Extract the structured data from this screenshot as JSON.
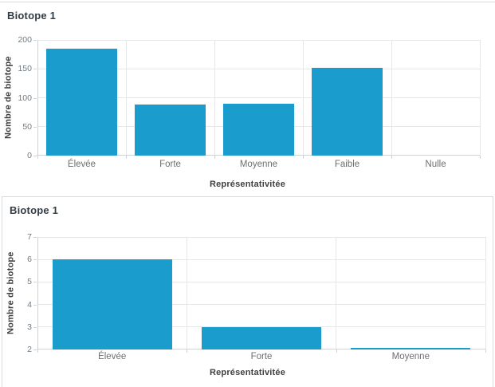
{
  "colors": {
    "bar": "#1A9CCD",
    "grid": "#e5e7e9",
    "axis": "#cfd3d6",
    "tick_label": "#6e7b84",
    "category_label": "#6e6e6e",
    "axis_title": "#404040",
    "chart_title": "#323c44",
    "card_border": "#d9dbdd"
  },
  "chart_data": [
    {
      "type": "bar",
      "title": "Biotope 1",
      "xlabel": "Représentativitée",
      "ylabel": "Nombre de biotope",
      "categories": [
        "Élevée",
        "Forte",
        "Moyenne",
        "Faible",
        "Nulle"
      ],
      "values": [
        185,
        88,
        90,
        152,
        0
      ],
      "ylim": [
        0,
        200
      ],
      "yticks": [
        0,
        50,
        100,
        150,
        200
      ],
      "grid": "on",
      "legend": "none"
    },
    {
      "type": "bar",
      "title": "Biotope 1",
      "xlabel": "Représentativitée",
      "ylabel": "Nombre de biotope",
      "categories": [
        "Élevée",
        "Forte",
        "Moyenne"
      ],
      "values": [
        6,
        3,
        2
      ],
      "ylim": [
        2,
        7
      ],
      "yticks": [
        2,
        3,
        4,
        5,
        6,
        7
      ],
      "grid": "on",
      "legend": "none"
    }
  ]
}
